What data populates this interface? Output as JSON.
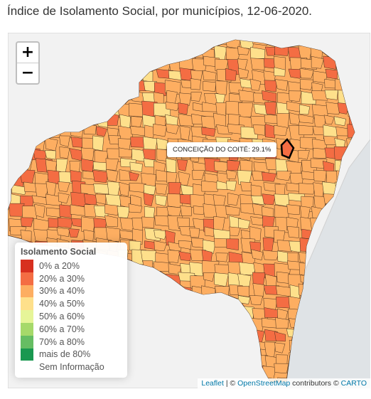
{
  "title": "Índice de Isolamento Social, por municípios, 12-06-2020.",
  "zoom": {
    "in_label": "+",
    "out_label": "−"
  },
  "tooltip": {
    "text": "CONCEIÇÃO DO COITÉ: 29.1%"
  },
  "legend": {
    "title": "Isolamento Social",
    "items": [
      {
        "label": "0% a 20%",
        "color": "#d7301f"
      },
      {
        "label": "20% a 30%",
        "color": "#f46d43"
      },
      {
        "label": "30% a 40%",
        "color": "#fdae61"
      },
      {
        "label": "40% a 50%",
        "color": "#fee08b"
      },
      {
        "label": "50% a 60%",
        "color": "#e6f598"
      },
      {
        "label": "60% a 70%",
        "color": "#a6d96a"
      },
      {
        "label": "70% a 80%",
        "color": "#66bd63"
      },
      {
        "label": "mais de 80%",
        "color": "#1a9850"
      },
      {
        "label": "Sem Informação",
        "color": "#ffffff"
      }
    ]
  },
  "attribution": {
    "leaflet": "Leaflet",
    "sep1": " | © ",
    "osm": "OpenStreetMap",
    "mid": " contributors © ",
    "carto": "CARTO"
  },
  "colors": {
    "sea": "#dfe3e6",
    "land": "#f2f2f2",
    "border": "#4a3220"
  }
}
